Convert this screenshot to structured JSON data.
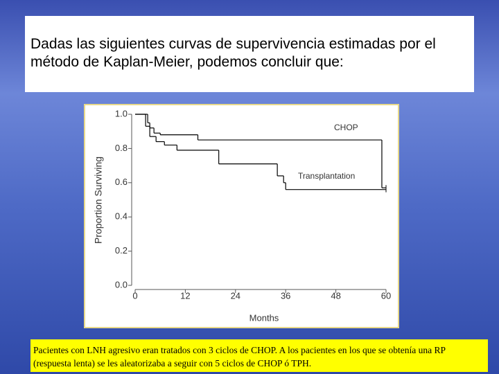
{
  "slide": {
    "title": "Dadas las siguientes curvas de supervivencia estimadas por el método de Kaplan-Meier, podemos concluir que:",
    "caption": "Pacientes con LNH agresivo eran tratados con 3 ciclos de CHOP. A los pacientes en los que se obtenía una RP (respuesta lenta) se les aleatorizaba a seguir con 5 ciclos de CHOP ó TPH."
  },
  "chart_data": {
    "type": "step",
    "x_label": "Months",
    "y_label": "Proportion Surviving",
    "xlim": [
      0,
      60
    ],
    "xticks": [
      0,
      12,
      24,
      36,
      48,
      60
    ],
    "ylim": [
      0,
      1
    ],
    "yticks": [
      {
        "value": 0,
        "label": "0.0"
      },
      {
        "value": 0.2,
        "label": "0.2"
      },
      {
        "value": 0.4,
        "label": "0.4"
      },
      {
        "value": 0.6,
        "label": "0.6"
      },
      {
        "value": 0.8,
        "label": "0.8"
      },
      {
        "value": 1,
        "label": "1.0"
      }
    ],
    "series": [
      {
        "name": "CHOP",
        "color": "#000000",
        "x": [
          0,
          3,
          3.5,
          4.5,
          6,
          15,
          59,
          60
        ],
        "values": [
          1.0,
          0.95,
          0.92,
          0.89,
          0.88,
          0.85,
          0.57,
          0.57
        ]
      },
      {
        "name": "Transplantation",
        "color": "#000000",
        "x": [
          0,
          2.5,
          3.5,
          5,
          7,
          10,
          20,
          34,
          35.5,
          36,
          60
        ],
        "values": [
          1.0,
          0.93,
          0.87,
          0.84,
          0.82,
          0.79,
          0.71,
          0.64,
          0.6,
          0.56,
          0.56
        ]
      }
    ]
  }
}
